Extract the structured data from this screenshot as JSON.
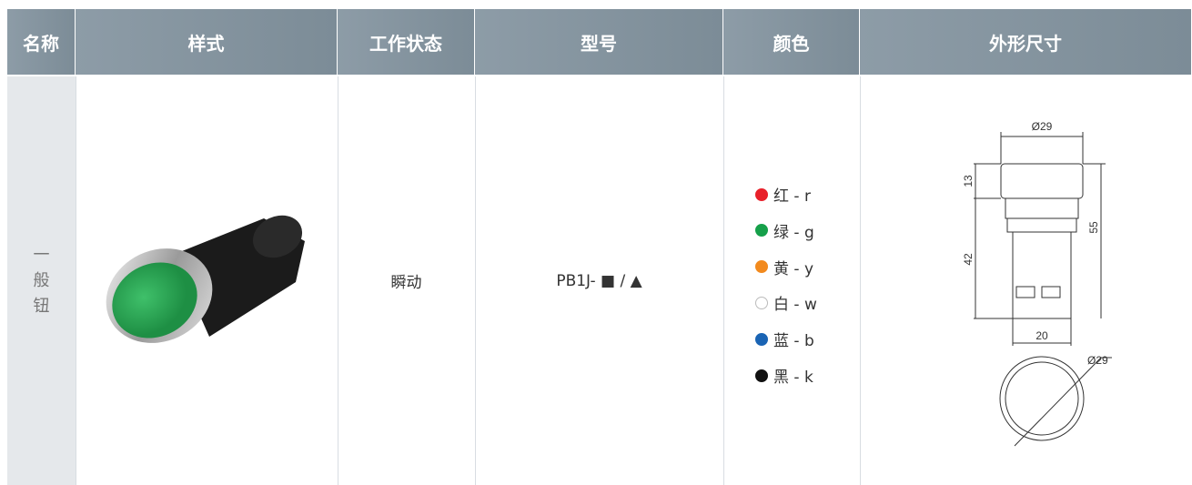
{
  "table": {
    "headers": [
      "名称",
      "样式",
      "工作状态",
      "型号",
      "颜色",
      "外形尺寸"
    ],
    "rows": [
      {
        "name": "一般钮",
        "state": "瞬动",
        "model": "PB1J- ■ / ▲",
        "colors": [
          {
            "dot": "#e8202a",
            "label": "红 - r"
          },
          {
            "dot": "#16a04a",
            "label": "绿 - g"
          },
          {
            "dot": "#f28a1e",
            "label": "黄 - y"
          },
          {
            "dot": "#ffffff",
            "label": "白 - w"
          },
          {
            "dot": "#1a64b4",
            "label": "蓝 - b"
          },
          {
            "dot": "#111111",
            "label": "黑 - k"
          }
        ],
        "dimensions": {
          "top_diameter": "Ø29",
          "head_height": "13",
          "total_height": "55",
          "body_height": "42",
          "body_width": "20",
          "front_diameter": "Ø29"
        }
      }
    ]
  }
}
